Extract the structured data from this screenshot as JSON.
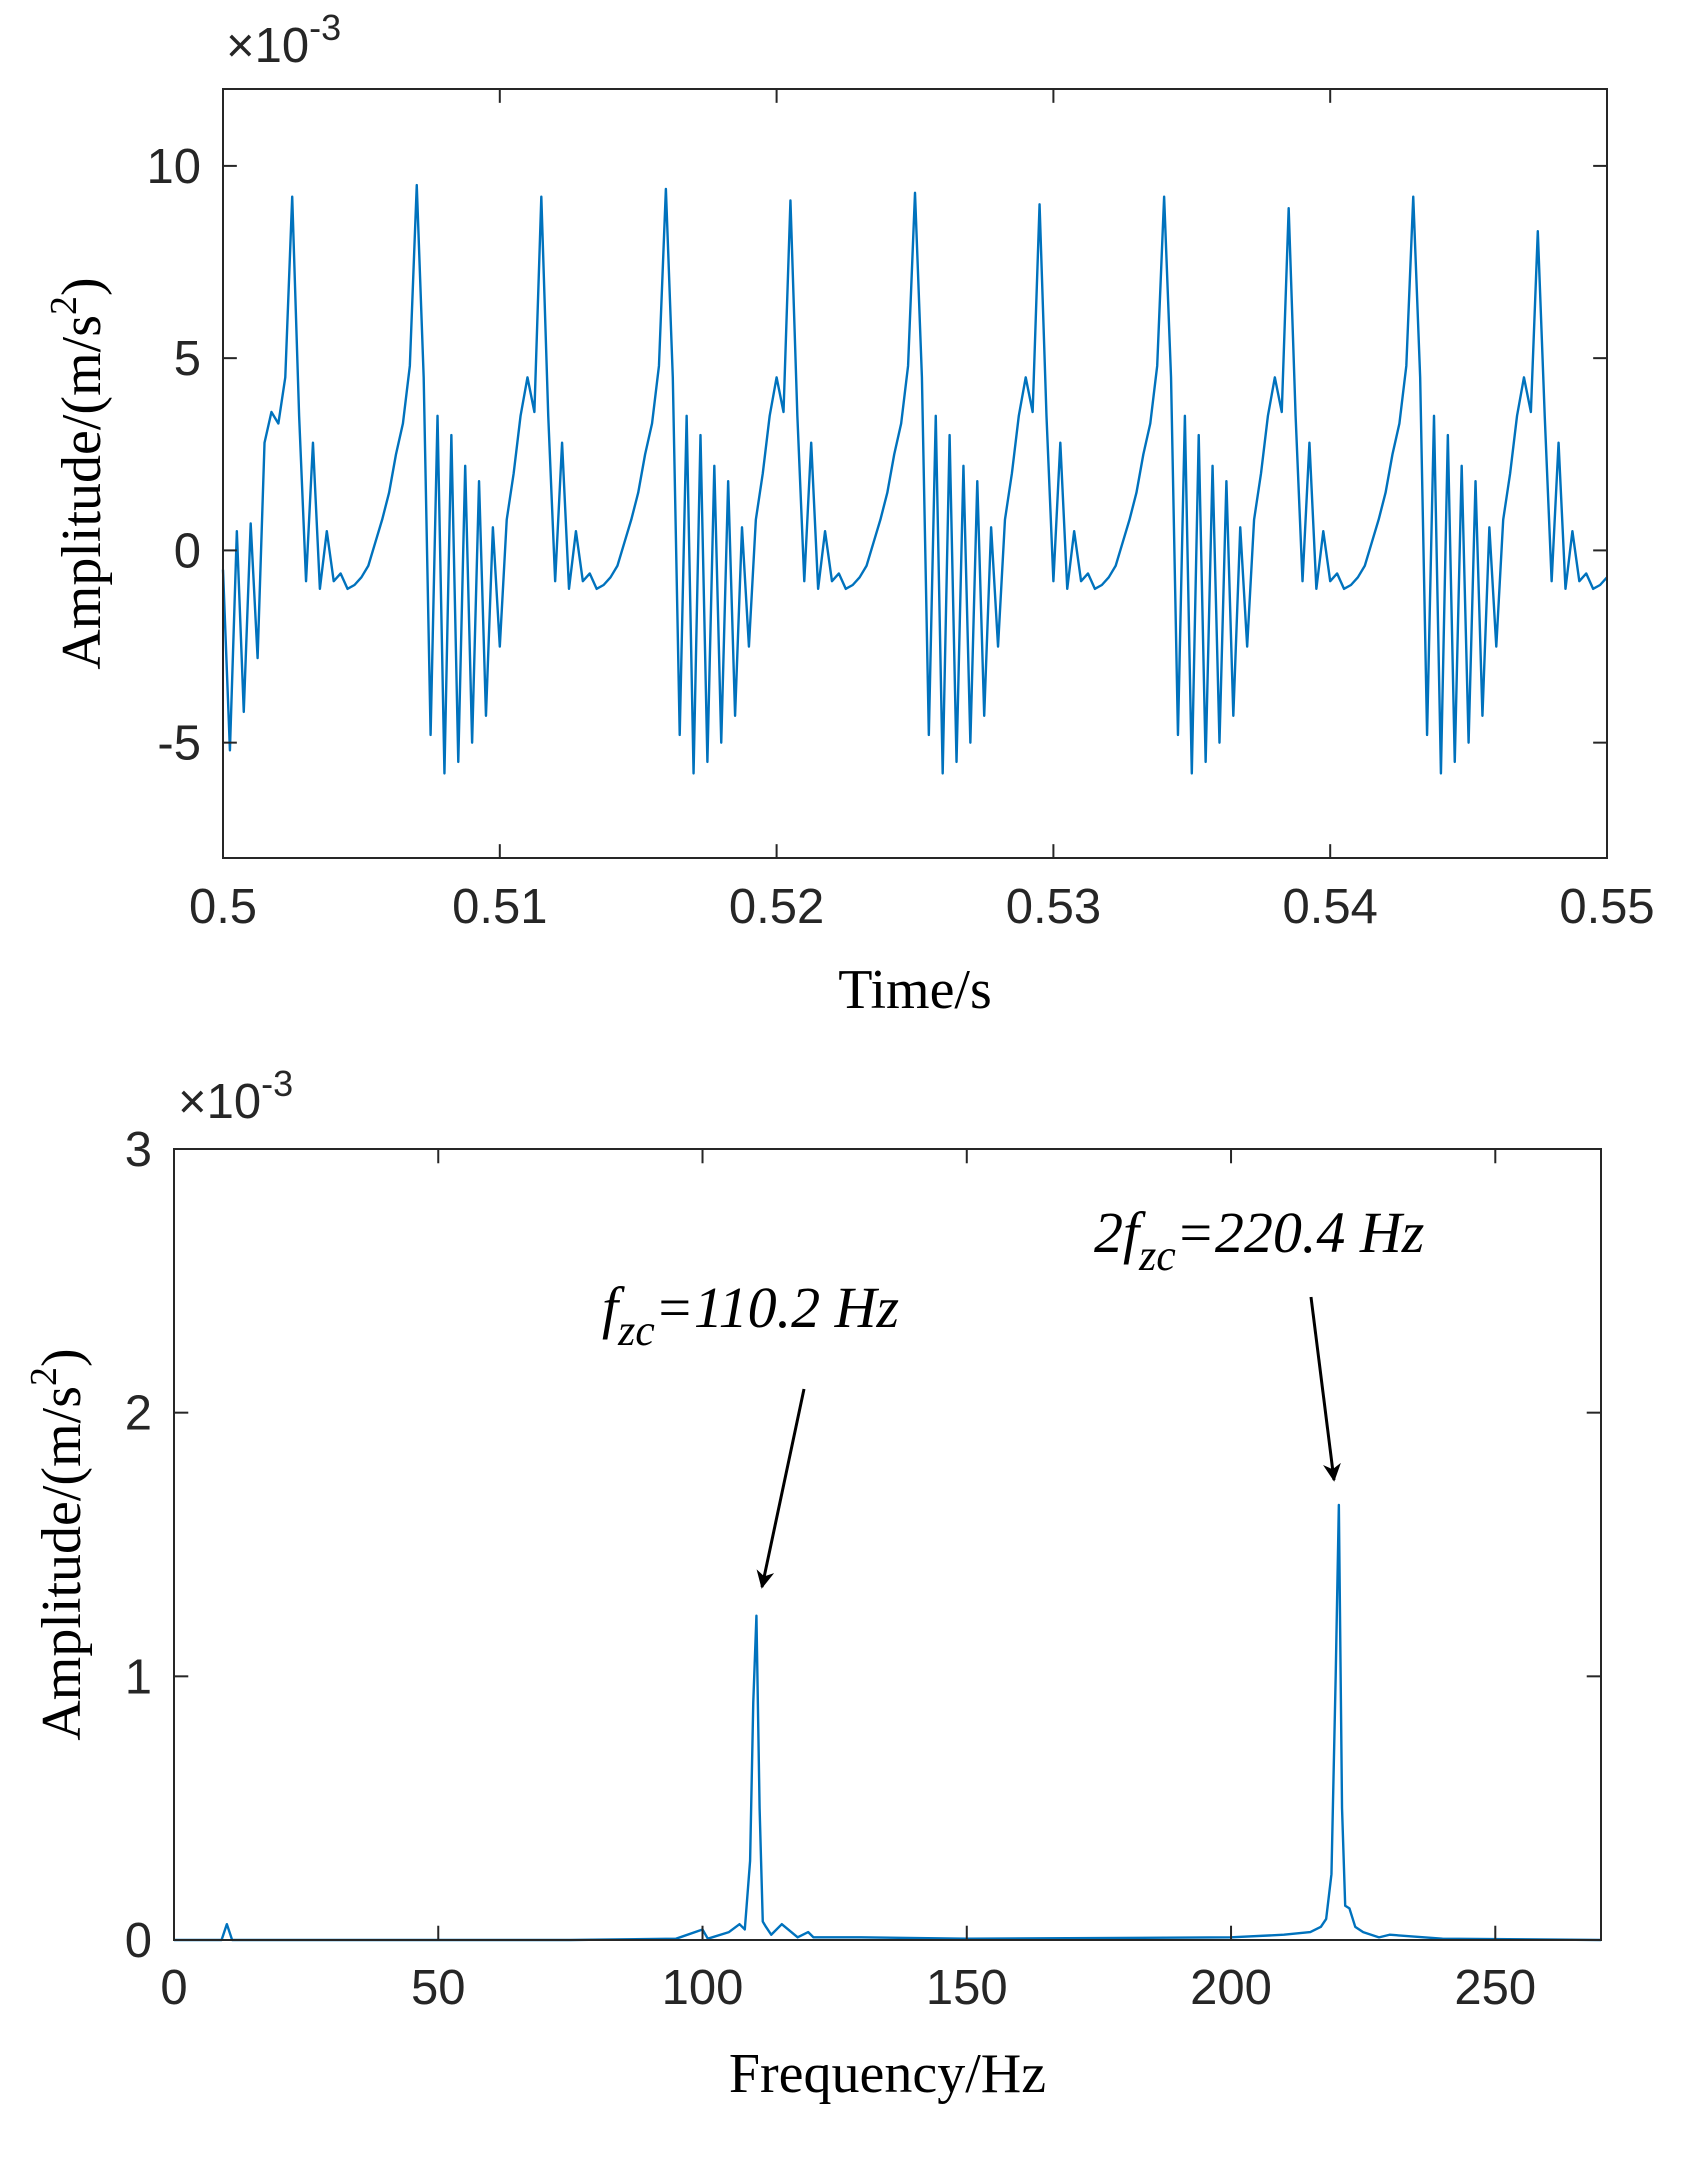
{
  "chart_data": [
    {
      "type": "line",
      "xlabel": "Time/s",
      "ylabel": {
        "main": "Amplitude/(m/s",
        "sup": "2",
        "close": ")"
      },
      "y_multiplier": {
        "base": "×10",
        "power": "-3"
      },
      "xlim": [
        0.5,
        0.55
      ],
      "xticks": [
        0.5,
        0.51,
        0.52,
        0.53,
        0.54,
        0.55
      ],
      "ylim": [
        -8,
        12
      ],
      "yticks": [
        -5,
        0,
        5,
        10
      ],
      "color": "#0072bd",
      "x": [
        0.5,
        0.50025,
        0.5005,
        0.50075,
        0.501,
        0.50125,
        0.5015,
        0.50175,
        0.502,
        0.50225,
        0.5025,
        0.50275,
        0.503,
        0.50325,
        0.5035,
        0.50375,
        0.504,
        0.50425,
        0.5045,
        0.50475,
        0.505,
        0.50525,
        0.5055,
        0.50575,
        0.506,
        0.50625,
        0.5065,
        0.50675,
        0.507,
        0.50725,
        0.5075,
        0.50775,
        0.508,
        0.50825,
        0.5085,
        0.50875,
        0.509,
        0.50925,
        0.5095,
        0.50975,
        0.51,
        0.51025,
        0.5105,
        0.51075,
        0.511,
        0.51125,
        0.5115,
        0.51175,
        0.512,
        0.51225,
        0.5125,
        0.51275,
        0.513,
        0.51325,
        0.5135,
        0.51375,
        0.514,
        0.51425,
        0.5145,
        0.51475,
        0.515,
        0.51525,
        0.5155,
        0.51575,
        0.516,
        0.51625,
        0.5165,
        0.51675,
        0.517,
        0.51725,
        0.5175,
        0.51775,
        0.518,
        0.51825,
        0.5185,
        0.51875,
        0.519,
        0.51925,
        0.5195,
        0.51975,
        0.52,
        0.52025,
        0.5205,
        0.52075,
        0.521,
        0.52125,
        0.5215,
        0.52175,
        0.522,
        0.52225,
        0.5225,
        0.52275,
        0.523,
        0.52325,
        0.5235,
        0.52375,
        0.524,
        0.52425,
        0.5245,
        0.52475,
        0.525,
        0.52525,
        0.5255,
        0.52575,
        0.526,
        0.52625,
        0.5265,
        0.52675,
        0.527,
        0.52725,
        0.5275,
        0.52775,
        0.528,
        0.52825,
        0.5285,
        0.52875,
        0.529,
        0.52925,
        0.5295,
        0.52975,
        0.53,
        0.53025,
        0.5305,
        0.53075,
        0.531,
        0.53125,
        0.5315,
        0.53175,
        0.532,
        0.53225,
        0.5325,
        0.53275,
        0.533,
        0.53325,
        0.5335,
        0.53375,
        0.534,
        0.53425,
        0.5345,
        0.53475,
        0.535,
        0.53525,
        0.5355,
        0.53575,
        0.536,
        0.53625,
        0.5365,
        0.53675,
        0.537,
        0.53725,
        0.5375,
        0.53775,
        0.538,
        0.53825,
        0.5385,
        0.53875,
        0.539,
        0.53925,
        0.5395,
        0.53975,
        0.54,
        0.54025,
        0.5405,
        0.54075,
        0.541,
        0.54125,
        0.5415,
        0.54175,
        0.542,
        0.54225,
        0.5425,
        0.54275,
        0.543,
        0.54325,
        0.5435,
        0.54375,
        0.544,
        0.54425,
        0.5445,
        0.54475,
        0.545,
        0.54525,
        0.5455,
        0.54575,
        0.546,
        0.54625,
        0.5465,
        0.54675,
        0.547,
        0.54725,
        0.5475,
        0.54775,
        0.548,
        0.54825,
        0.5485,
        0.54875,
        0.549,
        0.54925,
        0.5495,
        0.54975,
        0.55
      ],
      "values": [
        -0.5,
        -5.2,
        0.5,
        -4.2,
        0.7,
        -2.8,
        2.8,
        3.6,
        3.3,
        4.5,
        9.2,
        3.5,
        -0.8,
        2.8,
        -1.0,
        0.5,
        -0.8,
        -0.6,
        -1.0,
        -0.9,
        -0.7,
        -0.4,
        0.2,
        0.8,
        1.5,
        2.5,
        3.3,
        4.8,
        9.5,
        4.5,
        -4.8,
        3.5,
        -5.8,
        3.0,
        -5.5,
        2.2,
        -5.0,
        1.8,
        -4.3,
        0.6,
        -2.5,
        0.8,
        2.0,
        3.5,
        4.5,
        3.6,
        9.2,
        3.5,
        -0.8,
        2.8,
        -1.0,
        0.5,
        -0.8,
        -0.6,
        -1.0,
        -0.9,
        -0.7,
        -0.4,
        0.2,
        0.8,
        1.5,
        2.5,
        3.3,
        4.8,
        9.4,
        4.5,
        -4.8,
        3.5,
        -5.8,
        3.0,
        -5.5,
        2.2,
        -5.0,
        1.8,
        -4.3,
        0.6,
        -2.5,
        0.8,
        2.0,
        3.5,
        4.5,
        3.6,
        9.1,
        3.5,
        -0.8,
        2.8,
        -1.0,
        0.5,
        -0.8,
        -0.6,
        -1.0,
        -0.9,
        -0.7,
        -0.4,
        0.2,
        0.8,
        1.5,
        2.5,
        3.3,
        4.8,
        9.3,
        4.5,
        -4.8,
        3.5,
        -5.8,
        3.0,
        -5.5,
        2.2,
        -5.0,
        1.8,
        -4.3,
        0.6,
        -2.5,
        0.8,
        2.0,
        3.5,
        4.5,
        3.6,
        9.0,
        3.5,
        -0.8,
        2.8,
        -1.0,
        0.5,
        -0.8,
        -0.6,
        -1.0,
        -0.9,
        -0.7,
        -0.4,
        0.2,
        0.8,
        1.5,
        2.5,
        3.3,
        4.8,
        9.2,
        4.5,
        -4.8,
        3.5,
        -5.8,
        3.0,
        -5.5,
        2.2,
        -5.0,
        1.8,
        -4.3,
        0.6,
        -2.5,
        0.8,
        2.0,
        3.5,
        4.5,
        3.6,
        8.9,
        3.5,
        -0.8,
        2.8,
        -1.0,
        0.5,
        -0.8,
        -0.6,
        -1.0,
        -0.9,
        -0.7,
        -0.4,
        0.2,
        0.8,
        1.5,
        2.5,
        3.3,
        4.8,
        9.2,
        4.5,
        -4.8,
        3.5,
        -5.8,
        3.0,
        -5.5,
        2.2,
        -5.0,
        1.8,
        -4.3,
        0.6,
        -2.5,
        0.8,
        2.0,
        3.5,
        4.5,
        3.6,
        8.3,
        3.5,
        -0.8,
        2.8,
        -1.0,
        0.5,
        -0.8,
        -0.6,
        -1.0,
        -0.9,
        -0.7
      ]
    },
    {
      "type": "line",
      "xlabel": "Frequency/Hz",
      "ylabel": {
        "main": "Amplitude/(m/s",
        "sup": "2",
        "close": ")"
      },
      "y_multiplier": {
        "base": "×10",
        "power": "-3"
      },
      "xlim": [
        0,
        270
      ],
      "xticks": [
        0,
        50,
        100,
        150,
        200,
        250
      ],
      "ylim": [
        0,
        3
      ],
      "yticks": [
        0,
        1,
        2,
        3
      ],
      "color": "#0072bd",
      "x": [
        0,
        9,
        10,
        11,
        20,
        75,
        95,
        100,
        101,
        105,
        107,
        108,
        109,
        109.6,
        110.2,
        110.8,
        111.4,
        112,
        113,
        115,
        118,
        120,
        121,
        130,
        150,
        200,
        210,
        215,
        217,
        218,
        219,
        219.8,
        220.4,
        221,
        221.6,
        222.4,
        223.5,
        225,
        228,
        230,
        240,
        270
      ],
      "values": [
        0,
        0,
        0.06,
        0,
        0,
        0,
        0.005,
        0.04,
        0.005,
        0.03,
        0.06,
        0.04,
        0.3,
        0.9,
        1.23,
        0.5,
        0.07,
        0.05,
        0.02,
        0.06,
        0.01,
        0.03,
        0.01,
        0.01,
        0.005,
        0.01,
        0.02,
        0.03,
        0.05,
        0.08,
        0.25,
        1.0,
        1.65,
        0.5,
        0.13,
        0.12,
        0.05,
        0.03,
        0.01,
        0.02,
        0.005,
        0
      ],
      "annotations": [
        {
          "text": "f",
          "sub": "zc",
          "after": "=110.2 Hz"
        },
        {
          "text": "2f",
          "sub": "zc",
          "after": "=220.4 Hz"
        }
      ]
    }
  ]
}
